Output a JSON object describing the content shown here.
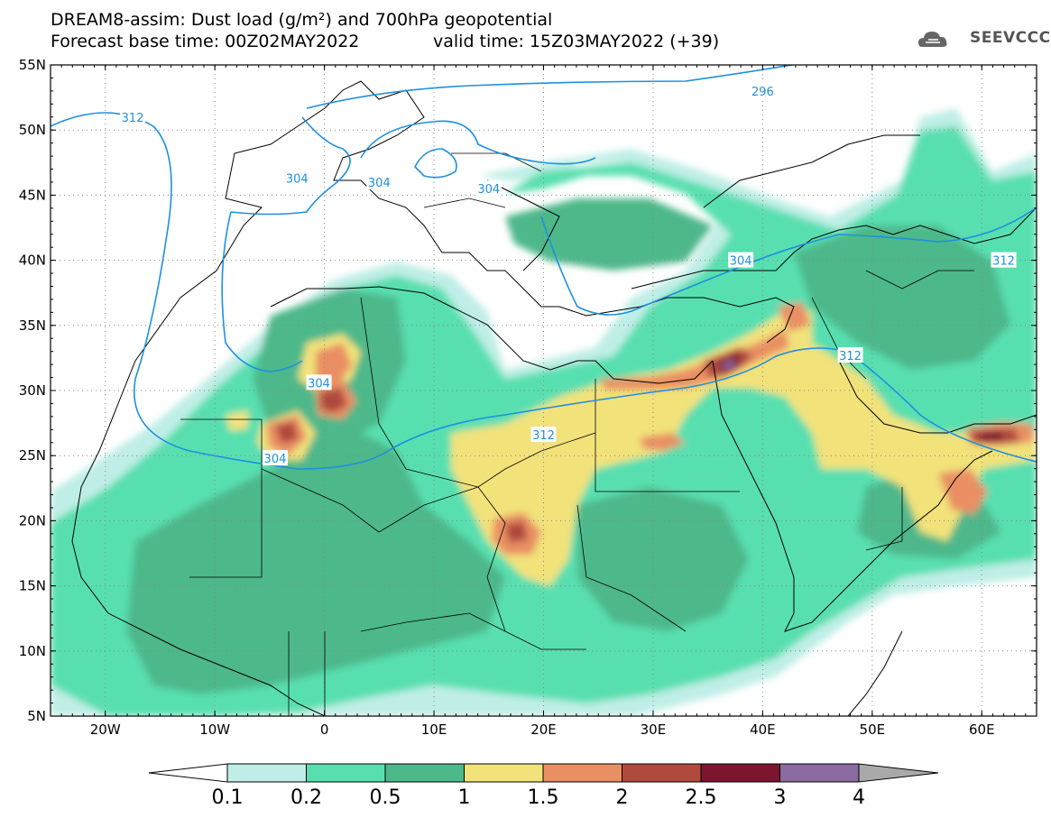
{
  "header": {
    "title_line1": "DREAM8-assim: Dust load (g/m²) and 700hPa geopotential",
    "title_line2_left": "Forecast base time: 00Z02MAY2022",
    "title_line2_right": "valid time: 15Z03MAY2022 (+39)"
  },
  "logo": {
    "text": "SEEVCCC",
    "icon": "cloud-icon"
  },
  "axes": {
    "lat_ticks": [
      "55N",
      "50N",
      "45N",
      "40N",
      "35N",
      "30N",
      "25N",
      "20N",
      "15N",
      "10N",
      "5N"
    ],
    "lon_ticks": [
      "20W",
      "10W",
      "0",
      "10E",
      "20E",
      "30E",
      "40E",
      "50E",
      "60E"
    ],
    "lat_range": [
      5,
      55
    ],
    "lon_range": [
      -25,
      65
    ]
  },
  "contours": {
    "labels": [
      "312",
      "304",
      "304",
      "304",
      "296",
      "304",
      "304",
      "312",
      "312",
      "304",
      "312"
    ],
    "color": "#1e90e0"
  },
  "colorbar": {
    "labels": [
      "0.1",
      "0.2",
      "0.5",
      "1",
      "1.5",
      "2",
      "2.5",
      "3",
      "4"
    ],
    "colors": [
      "#ffffff",
      "#bfeee6",
      "#58dfb0",
      "#4db88a",
      "#f2e27a",
      "#e98f63",
      "#b04a3c",
      "#7c1530",
      "#8a6aa0",
      "#a9a9a9"
    ]
  }
}
